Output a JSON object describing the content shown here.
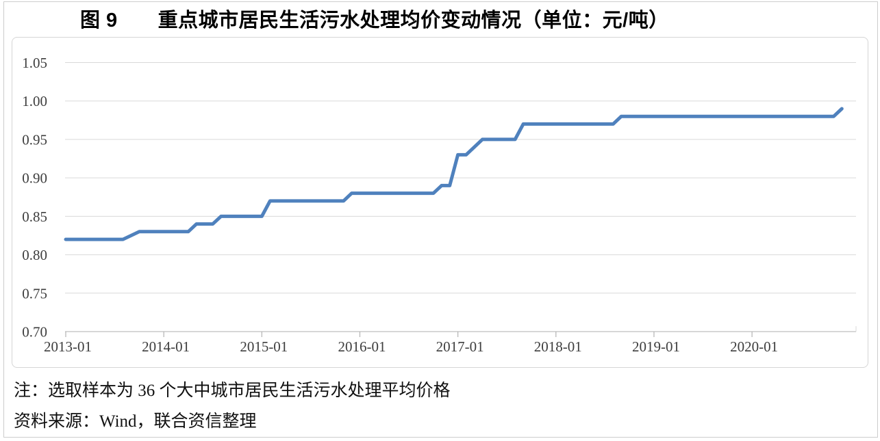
{
  "title": "图 9　　重点城市居民生活污水处理均价变动情况（单位：元/吨）",
  "notes": {
    "sample_note": "注：选取样本为 36 个大中城市居民生活污水处理平均价格",
    "source_note": "资料来源：Wind，联合资信整理"
  },
  "colors": {
    "line": "#4f81bd",
    "gridline": "#d9d9d9",
    "axis": "#bfbfbf",
    "tick": "#b3b3b3",
    "label": "#3d3d3d"
  },
  "chart_data": {
    "type": "line",
    "title": "图 9　重点城市居民生活污水处理均价变动情况（单位：元/吨）",
    "unit": "元/吨",
    "frequency": "monthly",
    "x_start": "2013-01",
    "x_end": "2020-12",
    "x_tick_labels": [
      "2013-01",
      "2014-01",
      "2015-01",
      "2016-01",
      "2017-01",
      "2018-01",
      "2019-01",
      "2020-01"
    ],
    "y_tick_labels": [
      "0.70",
      "0.75",
      "0.80",
      "0.85",
      "0.90",
      "0.95",
      "1.00",
      "1.05"
    ],
    "ylim": [
      0.7,
      1.05
    ],
    "grid": "horizontal",
    "legend": "none",
    "values": [
      0.82,
      0.82,
      0.82,
      0.82,
      0.82,
      0.82,
      0.82,
      0.82,
      0.825,
      0.83,
      0.83,
      0.83,
      0.83,
      0.83,
      0.83,
      0.83,
      0.84,
      0.84,
      0.84,
      0.85,
      0.85,
      0.85,
      0.85,
      0.85,
      0.85,
      0.87,
      0.87,
      0.87,
      0.87,
      0.87,
      0.87,
      0.87,
      0.87,
      0.87,
      0.87,
      0.88,
      0.88,
      0.88,
      0.88,
      0.88,
      0.88,
      0.88,
      0.88,
      0.88,
      0.88,
      0.88,
      0.89,
      0.89,
      0.93,
      0.93,
      0.94,
      0.95,
      0.95,
      0.95,
      0.95,
      0.95,
      0.97,
      0.97,
      0.97,
      0.97,
      0.97,
      0.97,
      0.97,
      0.97,
      0.97,
      0.97,
      0.97,
      0.97,
      0.98,
      0.98,
      0.98,
      0.98,
      0.98,
      0.98,
      0.98,
      0.98,
      0.98,
      0.98,
      0.98,
      0.98,
      0.98,
      0.98,
      0.98,
      0.98,
      0.98,
      0.98,
      0.98,
      0.98,
      0.98,
      0.98,
      0.98,
      0.98,
      0.98,
      0.98,
      0.98,
      0.99
    ]
  }
}
